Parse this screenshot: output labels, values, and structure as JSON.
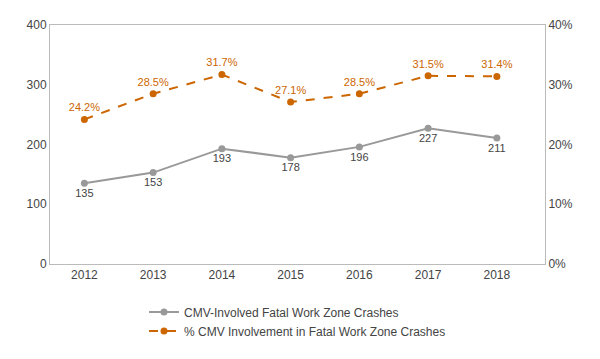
{
  "chart_data": {
    "type": "line",
    "x": [
      2012,
      2013,
      2014,
      2015,
      2016,
      2017,
      2018
    ],
    "xlim": [
      2011.5,
      2018.7
    ],
    "xticks": [
      2012,
      2013,
      2014,
      2015,
      2016,
      2017,
      2018
    ],
    "ylim": [
      0,
      400
    ],
    "yticks": [
      0,
      100,
      200,
      300,
      400
    ],
    "y2lim": [
      0,
      40
    ],
    "y2ticks": [
      {
        "value": 0,
        "label": "0%"
      },
      {
        "value": 10,
        "label": "10%"
      },
      {
        "value": 20,
        "label": "20%"
      },
      {
        "value": 30,
        "label": "30%"
      },
      {
        "value": 40,
        "label": "40%"
      }
    ],
    "grid": false,
    "legend": "bottom",
    "data_labels": true,
    "series": [
      {
        "name": "CMV-Involved Fatal Work Zone Crashes",
        "color": "#999999",
        "marker": "circle",
        "line_style": "solid",
        "values": [
          135,
          153,
          193,
          178,
          196,
          227,
          211
        ]
      },
      {
        "name": "% CMV Involvement in Fatal Work Zone Crashes",
        "color": "#CC6600",
        "marker": "circle",
        "line_style": "dashed",
        "axis": "y2",
        "values": [
          24.2,
          28.5,
          31.7,
          27.1,
          28.5,
          31.5,
          31.4
        ],
        "value_labels": [
          "24.2%",
          "28.5%",
          "31.7%",
          "27.1%",
          "28.5%",
          "31.5%",
          "31.4%"
        ]
      }
    ]
  }
}
